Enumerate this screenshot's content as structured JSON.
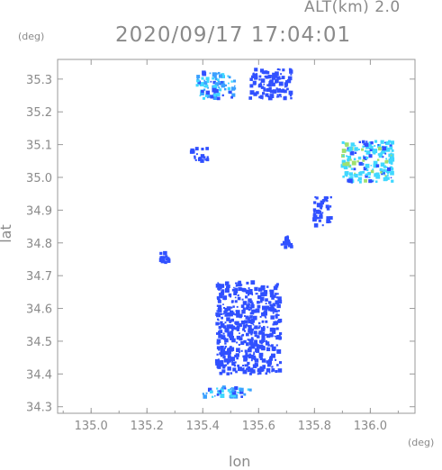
{
  "header": {
    "altitude_label": "ALT(km) 2.0",
    "timestamp": "2020/09/17 17:04:01"
  },
  "axes": {
    "y_unit": "(deg)",
    "x_unit": "(deg)",
    "x_label": "lon",
    "y_label": "lat",
    "x_ticks": [
      "135.0",
      "135.2",
      "135.4",
      "135.6",
      "135.8",
      "136.0"
    ],
    "y_ticks": [
      "35.3",
      "35.2",
      "35.1",
      "35.0",
      "34.9",
      "34.8",
      "34.7",
      "34.6",
      "34.5",
      "34.4",
      "34.3"
    ]
  },
  "chart_data": {
    "type": "heatmap",
    "title": "2020/09/17 17:04:01",
    "xlabel": "lon",
    "ylabel": "lat",
    "x_unit": "(deg)",
    "y_unit": "(deg)",
    "xlim": [
      134.88,
      136.16
    ],
    "ylim": [
      34.28,
      35.36
    ],
    "grid": false,
    "colors": {
      "low": "#3050ff",
      "mid": "#3aa0ff",
      "high": "#40d8ff",
      "edge": "#9fe06f"
    },
    "echo_regions": [
      {
        "lon": [
          135.38,
          135.52
        ],
        "lat": [
          35.24,
          35.32
        ],
        "intensity": "mid"
      },
      {
        "lon": [
          135.57,
          135.72
        ],
        "lat": [
          35.24,
          35.33
        ],
        "intensity": "low"
      },
      {
        "lon": [
          135.9,
          136.08
        ],
        "lat": [
          34.98,
          35.11
        ],
        "intensity": "high"
      },
      {
        "lon": [
          135.36,
          135.42
        ],
        "lat": [
          35.05,
          35.09
        ],
        "intensity": "low"
      },
      {
        "lon": [
          135.8,
          135.86
        ],
        "lat": [
          34.85,
          34.94
        ],
        "intensity": "low"
      },
      {
        "lon": [
          135.68,
          135.72
        ],
        "lat": [
          34.78,
          34.82
        ],
        "intensity": "low"
      },
      {
        "lon": [
          135.45,
          135.68
        ],
        "lat": [
          34.4,
          34.68
        ],
        "intensity": "low"
      },
      {
        "lon": [
          135.4,
          135.58
        ],
        "lat": [
          34.33,
          34.36
        ],
        "intensity": "mid"
      },
      {
        "lon": [
          135.25,
          135.28
        ],
        "lat": [
          34.74,
          34.77
        ],
        "intensity": "low"
      }
    ]
  }
}
